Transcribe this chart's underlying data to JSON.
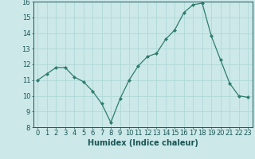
{
  "x": [
    0,
    1,
    2,
    3,
    4,
    5,
    6,
    7,
    8,
    9,
    10,
    11,
    12,
    13,
    14,
    15,
    16,
    17,
    18,
    19,
    20,
    21,
    22,
    23
  ],
  "y": [
    11.0,
    11.4,
    11.8,
    11.8,
    11.2,
    10.9,
    10.3,
    9.5,
    8.3,
    9.8,
    11.0,
    11.9,
    12.5,
    12.7,
    13.6,
    14.2,
    15.3,
    15.8,
    15.9,
    13.8,
    12.3,
    10.8,
    10.0,
    9.9
  ],
  "xlabel": "Humidex (Indice chaleur)",
  "ylim": [
    8,
    16
  ],
  "xlim": [
    -0.5,
    23.5
  ],
  "yticks": [
    8,
    9,
    10,
    11,
    12,
    13,
    14,
    15,
    16
  ],
  "xticks": [
    0,
    1,
    2,
    3,
    4,
    5,
    6,
    7,
    8,
    9,
    10,
    11,
    12,
    13,
    14,
    15,
    16,
    17,
    18,
    19,
    20,
    21,
    22,
    23
  ],
  "line_color": "#2e7d6e",
  "marker": "D",
  "marker_size": 2.0,
  "bg_color": "#cce8e8",
  "grid_color": "#b0d8d8",
  "label_fontsize": 7,
  "tick_fontsize": 6,
  "line_width": 0.9
}
